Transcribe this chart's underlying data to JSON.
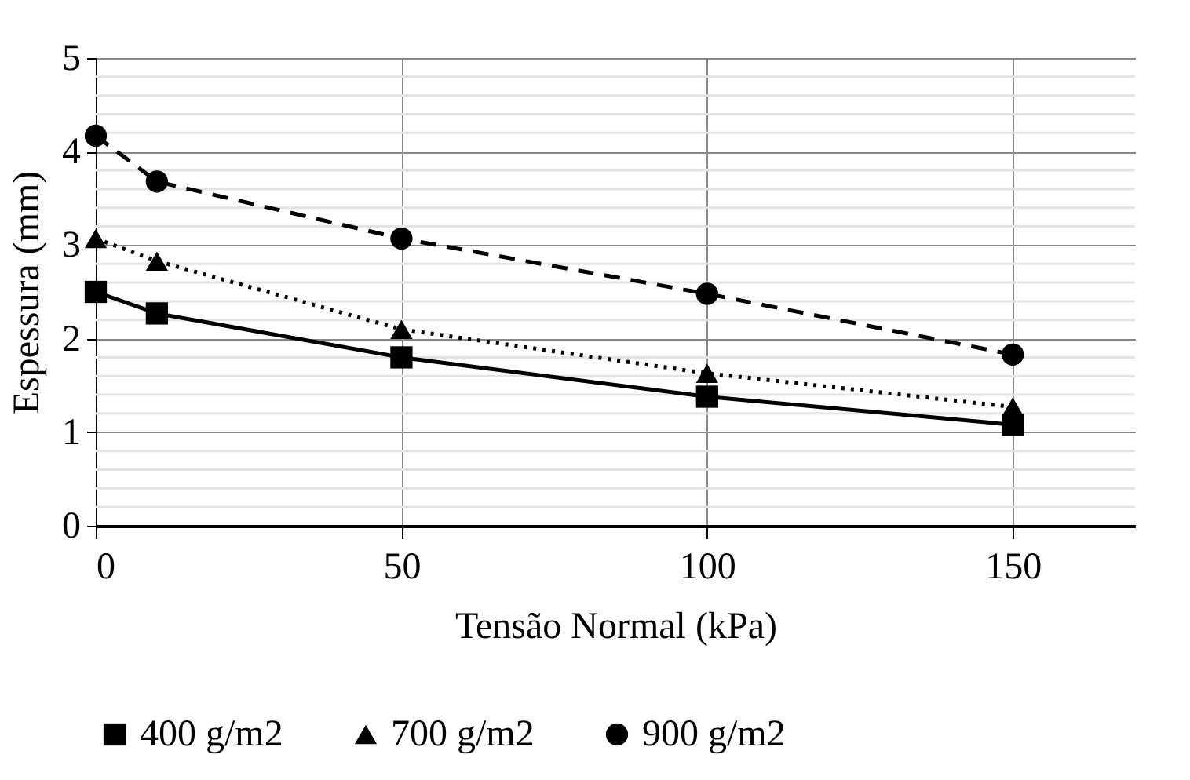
{
  "chart_data": {
    "type": "line",
    "xlabel": "Tensão Normal (kPa)",
    "ylabel": "Espessura (mm)",
    "x": [
      0,
      10,
      50,
      100,
      150
    ],
    "series": [
      {
        "name": "400 g/m2",
        "color": "#000000",
        "marker": "square",
        "line_style": "solid",
        "values": [
          2.5,
          2.27,
          1.8,
          1.38,
          1.08
        ]
      },
      {
        "name": "700 g/m2",
        "color": "#000000",
        "marker": "triangle",
        "line_style": "dotted",
        "values": [
          3.07,
          2.83,
          2.1,
          1.63,
          1.27
        ]
      },
      {
        "name": "900 g/m2",
        "color": "#000000",
        "marker": "circle",
        "line_style": "dashed",
        "values": [
          4.17,
          3.68,
          3.07,
          2.48,
          1.83
        ]
      }
    ],
    "xlim": [
      0,
      170
    ],
    "xticks": [
      0,
      50,
      100,
      150
    ],
    "ylim": [
      0,
      5
    ],
    "yticks": [
      0,
      {
        "value": 0.2,
        "label": null
      },
      {
        "value": 0.4,
        "label": null
      },
      {
        "value": 0.6,
        "label": null
      },
      {
        "value": 0.8,
        "label": null
      },
      1,
      {
        "value": 1.2,
        "label": null
      },
      {
        "value": 1.4,
        "label": null
      },
      {
        "value": 1.6,
        "label": null
      },
      {
        "value": 1.8,
        "label": null
      },
      2,
      {
        "value": 2.2,
        "label": null
      },
      {
        "value": 2.4,
        "label": null
      },
      {
        "value": 2.6,
        "label": null
      },
      {
        "value": 2.8,
        "label": null
      },
      3,
      {
        "value": 3.2,
        "label": null
      },
      {
        "value": 3.4,
        "label": null
      },
      {
        "value": 3.6,
        "label": null
      },
      {
        "value": 3.8,
        "label": null
      },
      4,
      {
        "value": 4.2,
        "label": null
      },
      {
        "value": 4.4,
        "label": null
      },
      {
        "value": 4.6,
        "label": null
      },
      {
        "value": 4.8,
        "label": null
      },
      5
    ],
    "grid": true,
    "legend": "bottom"
  }
}
